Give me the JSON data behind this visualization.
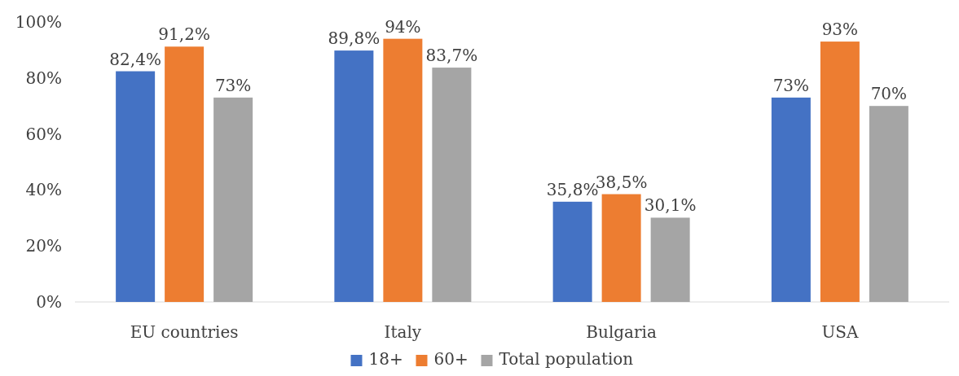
{
  "chart_data": {
    "type": "bar",
    "categories": [
      "EU countries",
      "Italy",
      "Bulgaria",
      "USA"
    ],
    "series": [
      {
        "name": "18+",
        "color": "#4472c4",
        "values": [
          82.4,
          89.8,
          35.8,
          73
        ],
        "value_labels": [
          "82,4%",
          "89,8%",
          "35,8%",
          "73%"
        ]
      },
      {
        "name": "60+",
        "color": "#ed7d31",
        "values": [
          91.2,
          94,
          38.5,
          93
        ],
        "value_labels": [
          "91,2%",
          "94%",
          "38,5%",
          "93%"
        ]
      },
      {
        "name": "Total population",
        "color": "#a5a5a5",
        "values": [
          73,
          83.7,
          30.1,
          70
        ],
        "value_labels": [
          "73%",
          "83,7%",
          "30,1%",
          "70%"
        ]
      }
    ],
    "ylim": [
      0,
      100
    ],
    "yticks": [
      {
        "value": 0,
        "label": "0%"
      },
      {
        "value": 20,
        "label": "20%"
      },
      {
        "value": 40,
        "label": "40%"
      },
      {
        "value": 60,
        "label": "60%"
      },
      {
        "value": 80,
        "label": "80%"
      },
      {
        "value": 100,
        "label": "100%"
      }
    ],
    "legend": "bottom"
  }
}
